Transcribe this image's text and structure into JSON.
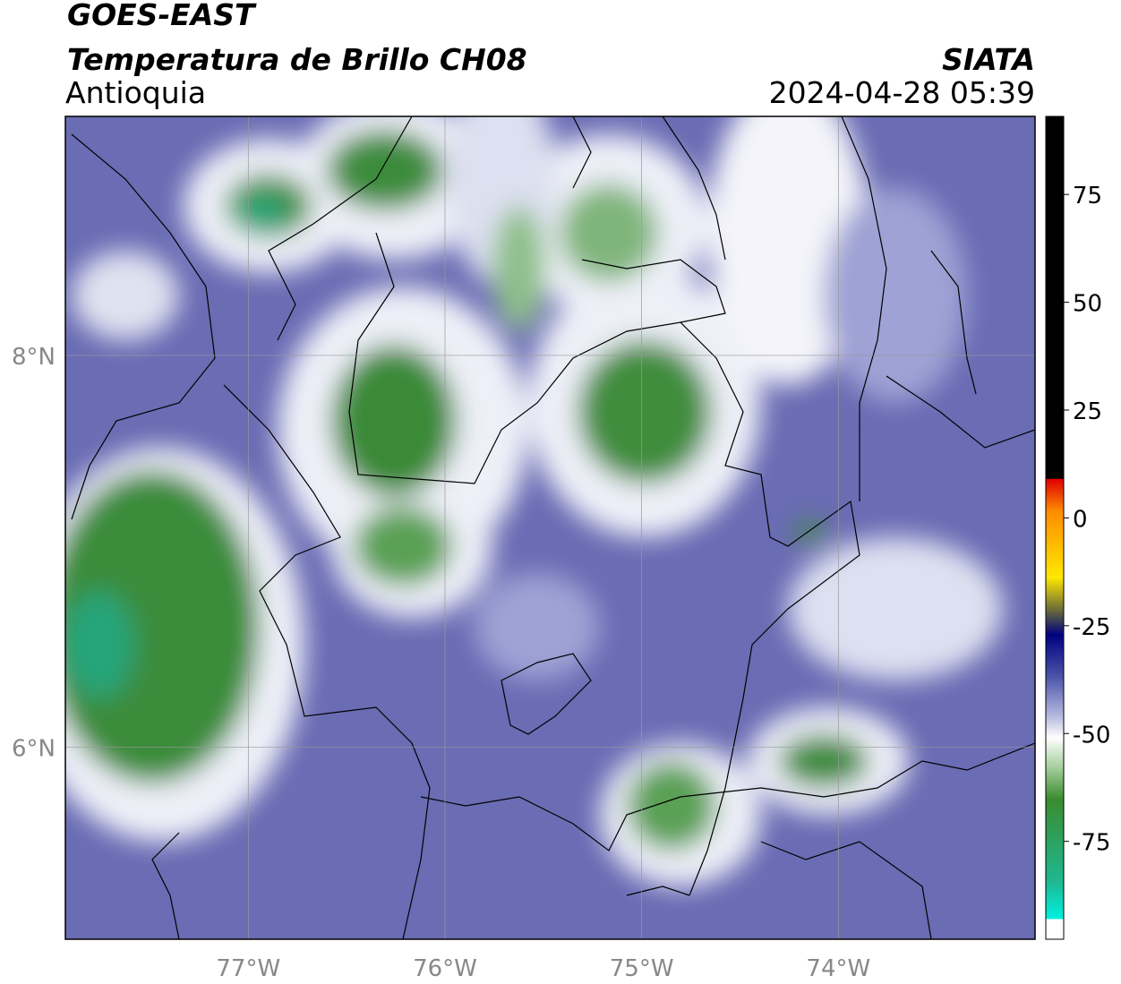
{
  "header": {
    "title": "GOES-EAST",
    "subtitle": "Temperatura de Brillo CH08",
    "region": "Antioquia",
    "source": "SIATA",
    "datetime": "2024-04-28 05:39"
  },
  "map": {
    "xlim": [
      -77.93,
      -73.0
    ],
    "ylim": [
      5.02,
      9.22
    ],
    "xticks": [
      {
        "value": -77,
        "label": "77°W"
      },
      {
        "value": -76,
        "label": "76°W"
      },
      {
        "value": -75,
        "label": "75°W"
      },
      {
        "value": -74,
        "label": "74°W"
      }
    ],
    "yticks": [
      {
        "value": 8,
        "label": "8°N"
      },
      {
        "value": 6,
        "label": "6°N"
      }
    ]
  },
  "colorbar": {
    "lim": [
      -97.7,
      93.1
    ],
    "ticks": [
      75,
      50,
      25,
      0,
      -25,
      -50,
      -75
    ]
  }
}
